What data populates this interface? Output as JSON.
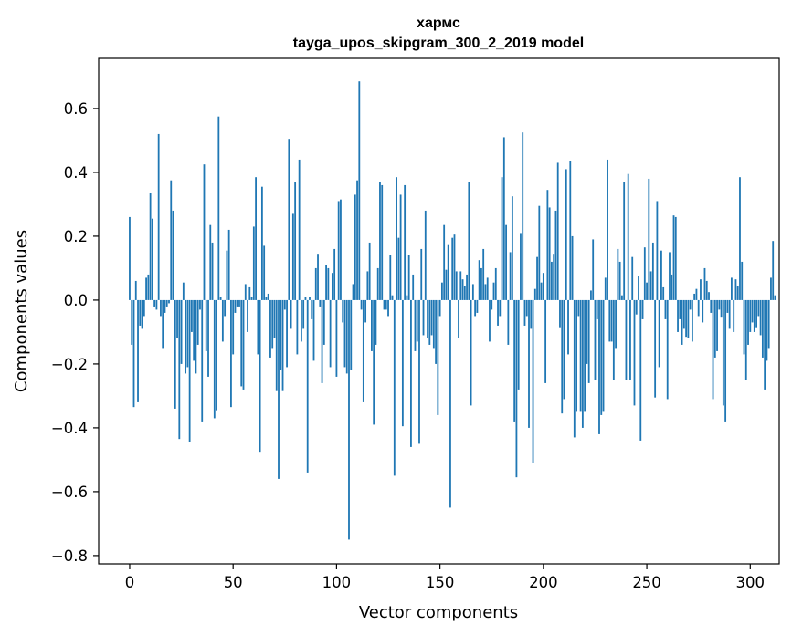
{
  "chart_data": {
    "type": "bar",
    "title": "хармс",
    "subtitle": "tayga_upos_skipgram_300_2_2019 model",
    "xlabel": "Vector components",
    "ylabel": "Components values",
    "xlim": [
      -15,
      314
    ],
    "ylim": [
      -0.826,
      0.757
    ],
    "xticks": [
      0,
      50,
      100,
      150,
      200,
      250,
      300
    ],
    "yticks": [
      -0.8,
      -0.6,
      -0.4,
      -0.2,
      0.0,
      0.2,
      0.4,
      0.6
    ],
    "ytick_labels": [
      "−0.8",
      "−0.6",
      "−0.4",
      "−0.2",
      "0.0",
      "0.2",
      "0.4",
      "0.6"
    ],
    "bar_color": "#1f77b4",
    "values": [
      0.26,
      -0.14,
      -0.335,
      0.06,
      -0.32,
      -0.08,
      -0.09,
      -0.05,
      0.07,
      0.08,
      0.335,
      0.255,
      -0.02,
      -0.03,
      0.52,
      -0.05,
      -0.15,
      -0.04,
      -0.02,
      -0.01,
      0.375,
      0.28,
      -0.34,
      -0.12,
      -0.435,
      -0.2,
      0.055,
      -0.23,
      -0.21,
      -0.445,
      -0.1,
      -0.19,
      -0.23,
      -0.14,
      -0.03,
      -0.38,
      0.425,
      -0.16,
      -0.24,
      0.235,
      0.18,
      -0.37,
      -0.345,
      0.575,
      0.01,
      -0.13,
      -0.05,
      0.155,
      0.22,
      -0.335,
      -0.17,
      -0.04,
      -0.02,
      -0.02,
      -0.27,
      -0.28,
      0.05,
      -0.1,
      0.04,
      0.01,
      0.23,
      0.385,
      -0.17,
      -0.475,
      0.355,
      0.17,
      0.01,
      0.02,
      -0.18,
      -0.15,
      -0.12,
      -0.285,
      -0.56,
      -0.22,
      -0.285,
      -0.03,
      -0.21,
      0.505,
      -0.09,
      0.27,
      0.37,
      -0.17,
      0.44,
      -0.13,
      -0.09,
      0.01,
      -0.54,
      0.01,
      -0.06,
      -0.19,
      0.1,
      0.145,
      -0.02,
      -0.26,
      -0.14,
      0.11,
      0.1,
      -0.21,
      0.085,
      0.16,
      -0.24,
      0.31,
      0.315,
      -0.07,
      -0.21,
      -0.23,
      -0.75,
      -0.22,
      0.05,
      0.33,
      0.375,
      0.685,
      -0.03,
      -0.32,
      -0.07,
      0.09,
      0.18,
      -0.16,
      -0.39,
      -0.14,
      0.1,
      0.37,
      0.36,
      -0.03,
      -0.03,
      -0.05,
      0.14,
      0.015,
      -0.55,
      0.385,
      0.195,
      0.33,
      -0.395,
      0.36,
      0.015,
      0.14,
      -0.46,
      0.08,
      -0.16,
      -0.13,
      -0.45,
      0.16,
      -0.11,
      0.28,
      -0.12,
      -0.14,
      -0.11,
      -0.15,
      -0.2,
      -0.36,
      -0.05,
      0.055,
      0.235,
      0.095,
      0.175,
      -0.65,
      0.195,
      0.205,
      0.09,
      -0.12,
      0.09,
      0.065,
      0.045,
      0.08,
      0.37,
      -0.33,
      0.05,
      -0.05,
      -0.04,
      0.125,
      0.1,
      0.16,
      0.05,
      0.07,
      -0.13,
      -0.03,
      0.055,
      0.1,
      -0.08,
      -0.05,
      0.385,
      0.51,
      0.235,
      -0.14,
      0.15,
      0.325,
      -0.38,
      -0.555,
      -0.28,
      0.21,
      0.525,
      -0.08,
      -0.05,
      -0.4,
      -0.09,
      -0.51,
      0.035,
      0.135,
      0.295,
      0.055,
      0.085,
      -0.26,
      0.345,
      0.29,
      0.12,
      0.145,
      0.28,
      0.43,
      -0.085,
      -0.355,
      -0.31,
      0.41,
      -0.17,
      0.435,
      0.2,
      -0.43,
      -0.35,
      -0.05,
      -0.35,
      -0.4,
      -0.35,
      -0.2,
      -0.26,
      0.03,
      0.19,
      -0.25,
      -0.06,
      -0.42,
      -0.36,
      -0.35,
      0.07,
      0.44,
      -0.13,
      -0.13,
      -0.25,
      -0.15,
      0.16,
      0.12,
      0.015,
      0.37,
      -0.25,
      0.395,
      -0.25,
      0.135,
      -0.33,
      -0.045,
      0.075,
      -0.44,
      -0.06,
      0.165,
      0.055,
      0.38,
      0.09,
      0.18,
      -0.305,
      0.31,
      -0.21,
      0.155,
      0.04,
      -0.06,
      -0.31,
      0.15,
      0.08,
      0.265,
      0.26,
      -0.1,
      -0.06,
      -0.14,
      -0.09,
      -0.115,
      -0.12,
      -0.03,
      -0.13,
      0.02,
      0.035,
      -0.05,
      0.065,
      -0.07,
      0.1,
      0.06,
      0.025,
      -0.04,
      -0.31,
      -0.18,
      -0.16,
      -0.03,
      -0.055,
      -0.33,
      -0.38,
      -0.04,
      -0.09,
      0.07,
      -0.1,
      0.065,
      0.045,
      0.385,
      0.12,
      -0.17,
      -0.25,
      -0.14,
      -0.1,
      -0.07,
      -0.1,
      -0.085,
      -0.05,
      -0.11,
      -0.18,
      -0.28,
      -0.19,
      -0.15,
      0.07,
      0.185,
      0.015
    ]
  }
}
